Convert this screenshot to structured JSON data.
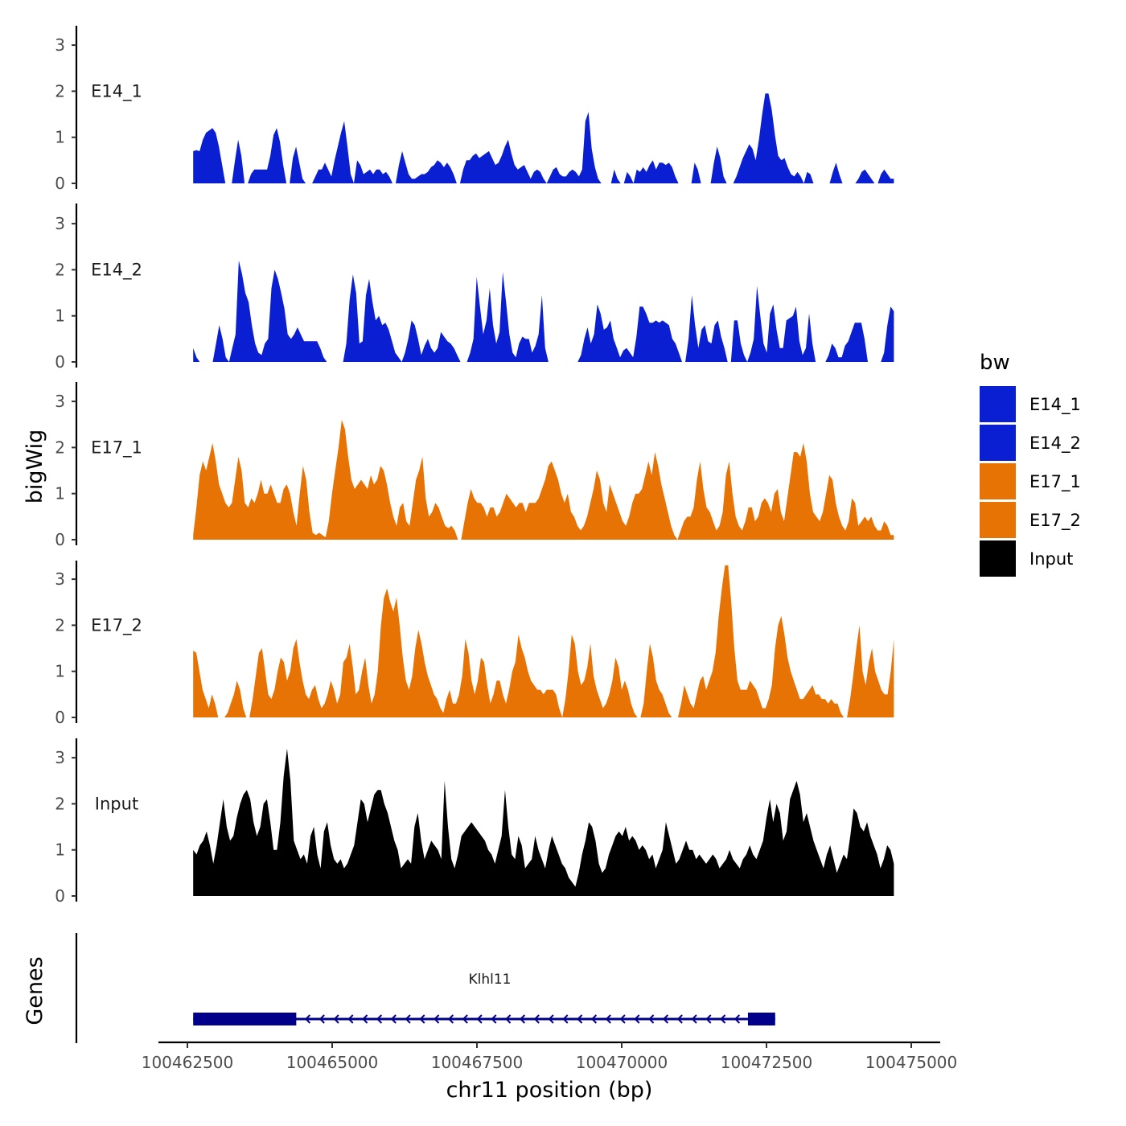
{
  "chart_data": {
    "type": "area",
    "chromosome_axis_label": "chr11 position (bp)",
    "ylabel": "bigWig",
    "ylim": [
      0,
      3.4
    ],
    "y_ticks": [
      "0",
      "1",
      "2",
      "3"
    ],
    "xlim": [
      100462000,
      100475500
    ],
    "x_ticks": [
      100462500,
      100465000,
      100467500,
      100470000,
      100472500,
      100475000
    ],
    "x_tick_labels": [
      "100462500",
      "100465000",
      "100467500",
      "100470000",
      "100472500",
      "100475000"
    ],
    "region_start": 100462600,
    "region_end": 100474700,
    "legend": {
      "title": "bw",
      "entries": [
        {
          "label": "E14_1",
          "color": "#0a1fd1"
        },
        {
          "label": "E14_2",
          "color": "#0a1fd1"
        },
        {
          "label": "E17_1",
          "color": "#e87305"
        },
        {
          "label": "E17_2",
          "color": "#e87305"
        },
        {
          "label": "Input",
          "color": "#000000"
        }
      ]
    },
    "series": [
      {
        "name": "E14_1",
        "label": "E14_1",
        "color": "#0a1fd1",
        "values": [
          0.7,
          0.72,
          0.7,
          0.95,
          1.1,
          1.15,
          1.2,
          1.1,
          0.8,
          0.4,
          0,
          0,
          0,
          0.5,
          0.95,
          0.6,
          0,
          0,
          0.2,
          0.3,
          0.3,
          0.3,
          0.3,
          0.3,
          0.6,
          1.05,
          1.2,
          0.9,
          0.4,
          0,
          0,
          0.55,
          0.8,
          0.45,
          0.1,
          0,
          0,
          0,
          0.15,
          0.3,
          0.3,
          0.45,
          0.3,
          0.15,
          0.5,
          0.8,
          1.1,
          1.35,
          0.8,
          0.2,
          0,
          0.5,
          0.4,
          0.2,
          0.25,
          0.3,
          0.2,
          0.3,
          0.3,
          0.2,
          0.25,
          0.15,
          0,
          0,
          0.4,
          0.7,
          0.45,
          0.2,
          0.1,
          0.1,
          0.15,
          0.2,
          0.2,
          0.25,
          0.35,
          0.4,
          0.5,
          0.45,
          0.35,
          0.45,
          0.35,
          0.2,
          0,
          0,
          0.3,
          0.5,
          0.5,
          0.6,
          0.65,
          0.55,
          0.6,
          0.65,
          0.7,
          0.55,
          0.4,
          0.45,
          0.6,
          0.8,
          0.95,
          0.65,
          0.4,
          0.3,
          0.35,
          0.4,
          0.25,
          0.1,
          0.25,
          0.3,
          0.25,
          0.1,
          0,
          0.15,
          0.3,
          0.35,
          0.2,
          0.15,
          0.15,
          0.25,
          0.3,
          0.25,
          0.15,
          0.3,
          1.35,
          1.55,
          0.75,
          0.35,
          0.1,
          0,
          0,
          0,
          0,
          0.3,
          0.1,
          0,
          0,
          0.25,
          0.15,
          0,
          0.3,
          0.25,
          0.35,
          0.25,
          0.4,
          0.5,
          0.3,
          0.45,
          0.45,
          0.4,
          0.45,
          0.35,
          0.15,
          0,
          0,
          0,
          0,
          0,
          0.45,
          0.3,
          0,
          0,
          0,
          0,
          0.45,
          0.8,
          0.55,
          0.15,
          0,
          0,
          0,
          0.15,
          0.35,
          0.55,
          0.7,
          0.85,
          0.75,
          0.5,
          0.95,
          1.5,
          1.95,
          1.95,
          1.6,
          1.05,
          0.6,
          0.5,
          0.55,
          0.35,
          0.2,
          0.15,
          0.25,
          0.15,
          0,
          0.25,
          0.2,
          0,
          0,
          0,
          0,
          0,
          0,
          0.25,
          0.45,
          0.2,
          0,
          0,
          0,
          0,
          0,
          0.1,
          0.25,
          0.3,
          0.2,
          0.1,
          0,
          0,
          0.2,
          0.3,
          0.2,
          0.1,
          0.1
        ]
      },
      {
        "name": "E14_2",
        "label": "E14_2",
        "color": "#0a1fd1",
        "values": [
          0.3,
          0.1,
          0,
          0,
          0,
          0,
          0,
          0.4,
          0.8,
          0.5,
          0.1,
          0,
          0.3,
          0.6,
          2.2,
          1.9,
          1.5,
          1.3,
          0.8,
          0.4,
          0.2,
          0.15,
          0.4,
          0.5,
          1.6,
          2.0,
          1.8,
          1.5,
          1.15,
          0.6,
          0.5,
          0.6,
          0.75,
          0.6,
          0.45,
          0.45,
          0.45,
          0.45,
          0.45,
          0.3,
          0.1,
          0,
          0,
          0,
          0,
          0,
          0,
          0.4,
          1.35,
          1.9,
          1.5,
          0.4,
          0.45,
          1.45,
          1.8,
          1.3,
          0.9,
          1.0,
          0.8,
          0.85,
          0.7,
          0.45,
          0.2,
          0.1,
          0,
          0.2,
          0.5,
          0.9,
          0.8,
          0.5,
          0.15,
          0.35,
          0.5,
          0.3,
          0.2,
          0.3,
          0.65,
          0.55,
          0.45,
          0.4,
          0.3,
          0.15,
          0,
          0,
          0,
          0.2,
          0.5,
          1.85,
          1.2,
          0.6,
          0.9,
          1.6,
          0.8,
          0.4,
          0.65,
          1.95,
          1.3,
          0.6,
          0.2,
          0.1,
          0.4,
          0.55,
          0.5,
          0.5,
          0.2,
          0.35,
          0.6,
          1.45,
          0.3,
          0,
          0,
          0,
          0,
          0,
          0,
          0,
          0,
          0,
          0,
          0.15,
          0.5,
          0.75,
          0.4,
          0.6,
          1.25,
          1.05,
          0.7,
          0.75,
          0.9,
          0.5,
          0.3,
          0.1,
          0.25,
          0.3,
          0.2,
          0.1,
          0.55,
          1.2,
          1.2,
          1.05,
          0.85,
          0.85,
          0.9,
          0.85,
          0.9,
          0.85,
          0.8,
          0.5,
          0.4,
          0.2,
          0,
          0,
          0.5,
          1.45,
          0.8,
          0.3,
          0.7,
          0.8,
          0.45,
          0.4,
          0.8,
          0.9,
          0.55,
          0.3,
          0,
          0,
          0.9,
          0.9,
          0.4,
          0.15,
          0,
          0.2,
          0.5,
          1.65,
          1.0,
          0.4,
          0.2,
          1.05,
          1.25,
          0.7,
          0.3,
          0.3,
          0.9,
          0.95,
          1.0,
          1.2,
          0.45,
          0.15,
          0.3,
          1.05,
          0.4,
          0,
          0,
          0,
          0,
          0.15,
          0.4,
          0.3,
          0.1,
          0.1,
          0.35,
          0.45,
          0.65,
          0.85,
          0.85,
          0.85,
          0.5,
          0,
          0,
          0,
          0,
          0,
          0.2,
          0.8,
          1.2,
          1.1
        ]
      },
      {
        "name": "E17_1",
        "label": "E17_1",
        "color": "#e87305",
        "values": [
          0.1,
          0.7,
          1.4,
          1.7,
          1.5,
          1.8,
          2.1,
          1.7,
          1.2,
          1.0,
          0.8,
          0.7,
          0.8,
          1.3,
          1.8,
          1.5,
          0.8,
          0.7,
          0.9,
          0.8,
          1.0,
          1.3,
          1.0,
          1.0,
          1.2,
          1.0,
          0.8,
          0.8,
          1.1,
          1.2,
          1.0,
          0.6,
          0.3,
          1.0,
          1.6,
          1.3,
          0.6,
          0.15,
          0.1,
          0.15,
          0.1,
          0.05,
          0.4,
          1.0,
          1.5,
          2.0,
          2.6,
          2.4,
          1.8,
          1.3,
          1.1,
          1.2,
          1.3,
          1.2,
          1.1,
          1.4,
          1.2,
          1.3,
          1.6,
          1.5,
          1.2,
          0.8,
          0.5,
          0.3,
          0.7,
          0.8,
          0.4,
          0.3,
          0.8,
          1.3,
          1.5,
          1.8,
          0.9,
          0.5,
          0.6,
          0.8,
          0.7,
          0.5,
          0.3,
          0.25,
          0.3,
          0.2,
          0,
          0,
          0.4,
          0.8,
          1.1,
          0.9,
          0.8,
          0.8,
          0.7,
          0.5,
          0.7,
          0.7,
          0.5,
          0.6,
          0.8,
          1.0,
          0.9,
          0.8,
          0.7,
          0.8,
          0.8,
          0.6,
          0.8,
          0.8,
          0.8,
          0.9,
          1.1,
          1.3,
          1.6,
          1.7,
          1.5,
          1.3,
          1.0,
          0.8,
          1.0,
          0.6,
          0.5,
          0.3,
          0.2,
          0.3,
          0.5,
          0.8,
          1.1,
          1.5,
          1.3,
          0.8,
          0.6,
          1.2,
          1.0,
          0.8,
          0.6,
          0.4,
          0.3,
          0.5,
          0.8,
          1.0,
          1.0,
          1.1,
          1.4,
          1.7,
          1.4,
          1.9,
          1.6,
          1.2,
          0.9,
          0.6,
          0.3,
          0.1,
          0,
          0.2,
          0.4,
          0.5,
          0.5,
          0.7,
          1.3,
          1.7,
          1.1,
          0.7,
          0.6,
          0.4,
          0.2,
          0.3,
          0.6,
          1.4,
          1.7,
          1.0,
          0.5,
          0.3,
          0.2,
          0.4,
          0.7,
          0.7,
          0.4,
          0.5,
          0.8,
          0.9,
          0.8,
          0.6,
          1.0,
          1.1,
          0.6,
          0.4,
          0.9,
          1.4,
          1.9,
          1.9,
          1.8,
          2.1,
          1.7,
          1.0,
          0.6,
          0.5,
          0.4,
          0.6,
          1.0,
          1.4,
          1.3,
          0.8,
          0.5,
          0.3,
          0.2,
          0.4,
          0.9,
          0.8,
          0.3,
          0.4,
          0.5,
          0.4,
          0.5,
          0.3,
          0.2,
          0.2,
          0.4,
          0.3,
          0.1,
          0.1
        ]
      },
      {
        "name": "E17_2",
        "label": "E17_2",
        "color": "#e87305",
        "values": [
          1.45,
          1.4,
          1.0,
          0.6,
          0.4,
          0.2,
          0.5,
          0.3,
          0,
          0,
          0,
          0.1,
          0.3,
          0.5,
          0.8,
          0.6,
          0.2,
          0,
          0,
          0.4,
          0.9,
          1.4,
          1.5,
          1.0,
          0.5,
          0.4,
          0.6,
          1.0,
          1.3,
          1.2,
          0.8,
          1.0,
          1.5,
          1.7,
          1.2,
          0.8,
          0.5,
          0.4,
          0.6,
          0.7,
          0.4,
          0.2,
          0.3,
          0.5,
          0.8,
          0.6,
          0.3,
          0.5,
          1.2,
          1.3,
          1.6,
          1.1,
          0.5,
          0.6,
          1.0,
          1.3,
          0.7,
          0.3,
          0.5,
          1.0,
          2.0,
          2.6,
          2.8,
          2.5,
          2.3,
          2.6,
          2.0,
          1.3,
          0.8,
          0.6,
          0.9,
          1.5,
          1.9,
          1.6,
          1.2,
          0.9,
          0.7,
          0.5,
          0.4,
          0.2,
          0.1,
          0.4,
          0.6,
          0.3,
          0.3,
          0.5,
          0.9,
          1.7,
          1.4,
          0.8,
          0.5,
          0.8,
          1.3,
          1.2,
          0.7,
          0.3,
          0.5,
          0.8,
          0.8,
          0.5,
          0.3,
          0.6,
          1.0,
          1.2,
          1.8,
          1.5,
          1.3,
          1.0,
          0.8,
          0.7,
          0.6,
          0.6,
          0.5,
          0.6,
          0.6,
          0.6,
          0.5,
          0.2,
          0,
          0.4,
          1.0,
          1.8,
          1.6,
          1.0,
          0.7,
          0.8,
          1.1,
          1.6,
          0.9,
          0.6,
          0.4,
          0.2,
          0.3,
          0.5,
          0.8,
          1.3,
          1.1,
          0.6,
          0.8,
          0.6,
          0.3,
          0.1,
          0,
          0,
          0.3,
          1.0,
          1.6,
          1.3,
          0.8,
          0.6,
          0.5,
          0.3,
          0.1,
          0,
          0,
          0,
          0.3,
          0.7,
          0.5,
          0.3,
          0.2,
          0.5,
          0.8,
          0.9,
          0.6,
          0.8,
          1.0,
          1.4,
          2.2,
          2.8,
          3.3,
          3.3,
          2.5,
          1.5,
          0.8,
          0.6,
          0.6,
          0.6,
          0.8,
          0.7,
          0.6,
          0.4,
          0.2,
          0.2,
          0.4,
          0.7,
          1.5,
          2.0,
          2.2,
          1.8,
          1.3,
          1.0,
          0.8,
          0.6,
          0.4,
          0.4,
          0.5,
          0.6,
          0.7,
          0.5,
          0.5,
          0.4,
          0.4,
          0.3,
          0.4,
          0.3,
          0.3,
          0.1,
          0,
          0,
          0.4,
          0.9,
          1.5,
          2.0,
          1.0,
          0.7,
          1.2,
          1.5,
          1.0,
          0.8,
          0.6,
          0.5,
          0.5,
          1.0,
          1.7
        ]
      },
      {
        "name": "Input",
        "label": "Input",
        "color": "#000000",
        "values": [
          1.0,
          0.9,
          1.1,
          1.2,
          1.4,
          1.1,
          0.7,
          1.1,
          1.6,
          2.1,
          1.5,
          1.2,
          1.3,
          1.7,
          2.0,
          2.2,
          2.3,
          2.1,
          1.6,
          1.3,
          1.5,
          2.0,
          2.1,
          1.6,
          1.0,
          1.0,
          1.6,
          2.6,
          3.2,
          2.5,
          1.2,
          1.0,
          0.8,
          0.9,
          0.7,
          1.3,
          1.5,
          0.9,
          0.6,
          1.4,
          1.6,
          1.1,
          0.8,
          0.7,
          0.8,
          0.6,
          0.7,
          0.9,
          1.1,
          1.6,
          2.1,
          2.0,
          1.6,
          1.9,
          2.2,
          2.3,
          2.3,
          2.0,
          1.8,
          1.5,
          1.2,
          1.0,
          0.6,
          0.7,
          0.8,
          0.7,
          1.5,
          1.8,
          1.2,
          0.8,
          1.0,
          1.2,
          1.1,
          1.0,
          0.8,
          2.5,
          1.5,
          0.8,
          0.6,
          0.9,
          1.3,
          1.4,
          1.5,
          1.6,
          1.5,
          1.4,
          1.3,
          1.2,
          1.0,
          0.9,
          0.7,
          1.0,
          1.3,
          2.3,
          1.5,
          0.9,
          0.8,
          1.3,
          1.1,
          0.6,
          0.7,
          0.8,
          1.3,
          1.0,
          0.8,
          0.6,
          1.0,
          1.3,
          1.1,
          0.9,
          0.7,
          0.6,
          0.4,
          0.3,
          0.2,
          0.5,
          0.9,
          1.2,
          1.6,
          1.5,
          1.2,
          0.7,
          0.5,
          0.6,
          0.9,
          1.1,
          1.3,
          1.4,
          1.3,
          1.5,
          1.2,
          1.3,
          1.2,
          1.0,
          1.1,
          1.0,
          0.8,
          0.9,
          0.6,
          0.8,
          1.0,
          1.6,
          1.3,
          1.0,
          0.7,
          0.8,
          1.0,
          1.2,
          1.0,
          1.0,
          0.8,
          0.9,
          0.8,
          0.7,
          0.8,
          0.9,
          0.8,
          0.6,
          0.7,
          0.8,
          1.0,
          0.8,
          0.7,
          0.6,
          0.8,
          0.9,
          1.1,
          0.9,
          0.8,
          1.0,
          1.2,
          1.7,
          2.1,
          1.6,
          2.0,
          1.8,
          1.2,
          1.4,
          2.1,
          2.3,
          2.5,
          2.2,
          1.6,
          1.8,
          1.5,
          1.2,
          1.0,
          0.8,
          0.6,
          0.9,
          1.1,
          0.8,
          0.5,
          0.7,
          0.9,
          0.8,
          1.3,
          1.9,
          1.8,
          1.5,
          1.4,
          1.6,
          1.3,
          1.1,
          0.9,
          0.6,
          0.8,
          1.1,
          1.0,
          0.7
        ]
      }
    ],
    "gene_track": {
      "label": "Genes",
      "gene_name": "Klhl11",
      "strand": "-",
      "start": 100462600,
      "end": 100472650,
      "exons": [
        [
          100462600,
          100464380
        ],
        [
          100472180,
          100472650
        ]
      ],
      "color": "#00008b"
    }
  }
}
